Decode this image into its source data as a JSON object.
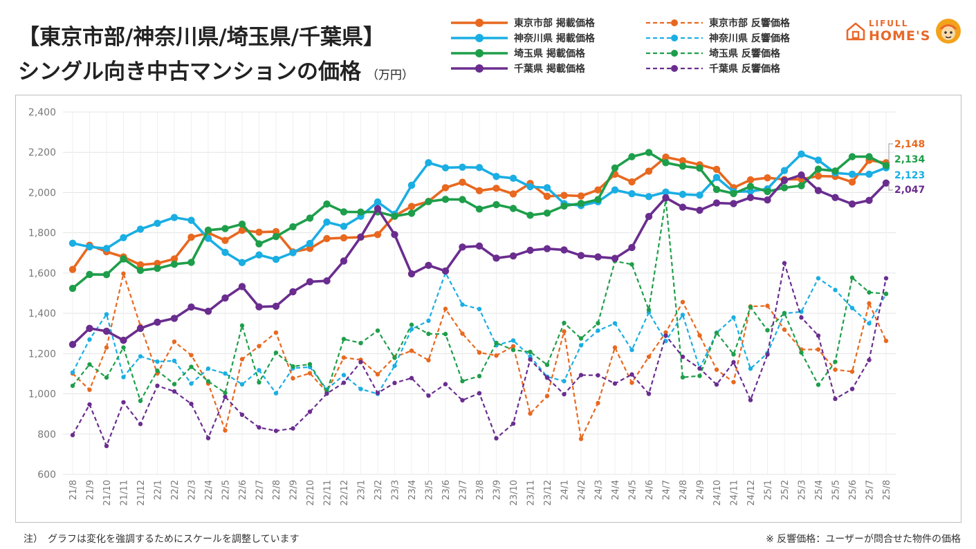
{
  "title": {
    "line1": "【東京市部/神奈川県/埼玉県/千葉県】",
    "line2": "シングル向き中古マンションの価格",
    "unit": "（万円）"
  },
  "logo": {
    "line1": "LIFULL",
    "line2": "HOME'S"
  },
  "notes": {
    "left": "注）　グラフは変化を強調するためにスケールを調整しています",
    "right": "※ 反響価格：ユーザーが問合せた物件の価格"
  },
  "colors": {
    "tokyo": "#e8681f",
    "kanagawa": "#1aaee3",
    "saitama": "#1e9e4a",
    "chiba": "#6a2d8f"
  },
  "chart_data": {
    "type": "line",
    "title": "【東京市部/神奈川県/埼玉県/千葉県】シングル向き中古マンションの価格",
    "ylabel": "",
    "xlabel": "",
    "unit": "万円",
    "ylim": [
      600,
      2400
    ],
    "yticks": [
      600,
      800,
      1000,
      1200,
      1400,
      1600,
      1800,
      2000,
      2200,
      2400
    ],
    "ytick_labels": [
      "600",
      "800",
      "1,000",
      "1,200",
      "1,400",
      "1,600",
      "1,800",
      "2,000",
      "2,200",
      "2,400"
    ],
    "grid": true,
    "legend_position": "top-right",
    "categories": [
      "21/8",
      "21/9",
      "21/10",
      "21/11",
      "21/12",
      "22/1",
      "22/2",
      "22/3",
      "22/4",
      "22/5",
      "22/6",
      "22/7",
      "22/8",
      "22/9",
      "22/10",
      "22/11",
      "22/12",
      "23/1",
      "23/2",
      "23/3",
      "23/4",
      "23/5",
      "23/6",
      "23/7",
      "23/8",
      "23/9",
      "23/10",
      "23/11",
      "23/12",
      "24/1",
      "24/2",
      "24/3",
      "24/4",
      "24/5",
      "24/6",
      "24/7",
      "24/8",
      "24/9",
      "24/10",
      "24/11",
      "24/12",
      "25/1",
      "25/2",
      "25/3",
      "25/4",
      "25/5",
      "25/6",
      "25/7",
      "25/8"
    ],
    "series": [
      {
        "name": "東京市部 掲載価格",
        "color_key": "tokyo",
        "style": "solid",
        "values": [
          1618,
          1738,
          1706,
          1680,
          1641,
          1648,
          1670,
          1778,
          1800,
          1762,
          1812,
          1803,
          1806,
          1705,
          1722,
          1771,
          1775,
          1778,
          1791,
          1884,
          1931,
          1956,
          2024,
          2051,
          2009,
          2021,
          1993,
          2045,
          1981,
          1986,
          1983,
          2013,
          2091,
          2053,
          2106,
          2176,
          2158,
          2138,
          2115,
          2024,
          2063,
          2073,
          2065,
          2066,
          2082,
          2080,
          2052,
          2160,
          2148
        ]
      },
      {
        "name": "神奈川県 掲載価格",
        "color_key": "kanagawa",
        "style": "solid",
        "values": [
          1748,
          1730,
          1722,
          1776,
          1818,
          1847,
          1876,
          1862,
          1772,
          1703,
          1652,
          1690,
          1668,
          1701,
          1747,
          1853,
          1832,
          1882,
          1953,
          1892,
          2036,
          2148,
          2123,
          2126,
          2124,
          2080,
          2071,
          2029,
          2024,
          1945,
          1935,
          1954,
          2013,
          1994,
          1980,
          2002,
          1991,
          1987,
          2075,
          2004,
          2006,
          2018,
          2109,
          2191,
          2161,
          2097,
          2091,
          2091,
          2123
        ]
      },
      {
        "name": "埼玉県 掲載価格",
        "color_key": "saitama",
        "style": "solid",
        "values": [
          1524,
          1593,
          1592,
          1670,
          1613,
          1623,
          1644,
          1653,
          1813,
          1821,
          1843,
          1745,
          1781,
          1830,
          1873,
          1943,
          1904,
          1903,
          1904,
          1882,
          1897,
          1955,
          1966,
          1965,
          1918,
          1940,
          1921,
          1887,
          1898,
          1933,
          1946,
          1965,
          2122,
          2178,
          2199,
          2148,
          2131,
          2121,
          2015,
          1995,
          2030,
          2005,
          2024,
          2034,
          2116,
          2107,
          2178,
          2178,
          2134
        ]
      },
      {
        "name": "千葉県 掲載価格",
        "color_key": "chiba",
        "style": "solid",
        "values": [
          1245,
          1325,
          1311,
          1266,
          1325,
          1356,
          1375,
          1431,
          1410,
          1476,
          1533,
          1432,
          1435,
          1507,
          1557,
          1561,
          1660,
          1779,
          1920,
          1791,
          1596,
          1638,
          1610,
          1729,
          1734,
          1674,
          1685,
          1713,
          1721,
          1715,
          1687,
          1680,
          1673,
          1727,
          1881,
          1974,
          1927,
          1912,
          1948,
          1945,
          1975,
          1963,
          2060,
          2087,
          2010,
          1975,
          1943,
          1961,
          2047
        ]
      },
      {
        "name": "東京市部 反響価格",
        "color_key": "tokyo",
        "style": "dashed",
        "values": [
          1101,
          1020,
          1230,
          1597,
          1338,
          1101,
          1259,
          1192,
          1051,
          818,
          1172,
          1237,
          1304,
          1077,
          1102,
          1009,
          1180,
          1169,
          1097,
          1183,
          1214,
          1167,
          1422,
          1299,
          1205,
          1190,
          1236,
          902,
          989,
          1310,
          776,
          954,
          1230,
          1055,
          1184,
          1305,
          1456,
          1290,
          1120,
          1058,
          1434,
          1437,
          1319,
          1220,
          1220,
          1120,
          1110,
          1449,
          1263
        ]
      },
      {
        "name": "神奈川県 反響価格",
        "color_key": "kanagawa",
        "style": "dashed",
        "values": [
          1106,
          1270,
          1395,
          1083,
          1186,
          1160,
          1164,
          1051,
          1125,
          1101,
          1047,
          1117,
          1003,
          1127,
          1133,
          1022,
          1093,
          1024,
          1000,
          1139,
          1321,
          1363,
          1601,
          1443,
          1421,
          1241,
          1265,
          1186,
          1085,
          1063,
          1241,
          1314,
          1350,
          1218,
          1404,
          1262,
          1392,
          1126,
          1303,
          1379,
          1125,
          1202,
          1399,
          1408,
          1574,
          1516,
          1426,
          1350,
          1496
        ]
      },
      {
        "name": "埼玉県 反響価格",
        "color_key": "saitama",
        "style": "dashed",
        "values": [
          1040,
          1146,
          1081,
          1230,
          965,
          1115,
          1048,
          1134,
          1062,
          1005,
          1339,
          1057,
          1204,
          1136,
          1147,
          1011,
          1272,
          1252,
          1314,
          1179,
          1343,
          1298,
          1297,
          1063,
          1088,
          1253,
          1218,
          1208,
          1144,
          1352,
          1275,
          1351,
          1659,
          1643,
          1417,
          1964,
          1082,
          1089,
          1303,
          1196,
          1431,
          1316,
          1401,
          1205,
          1045,
          1159,
          1577,
          1504,
          1497
        ]
      },
      {
        "name": "千葉県 反響価格",
        "color_key": "chiba",
        "style": "dashed",
        "values": [
          795,
          947,
          741,
          958,
          850,
          1040,
          1012,
          950,
          780,
          985,
          896,
          833,
          816,
          828,
          911,
          1001,
          1055,
          1158,
          1004,
          1054,
          1078,
          991,
          1048,
          968,
          1003,
          779,
          852,
          1171,
          1080,
          998,
          1093,
          1092,
          1051,
          1096,
          1000,
          1289,
          1184,
          1126,
          1046,
          1157,
          969,
          1195,
          1649,
          1379,
          1289,
          975,
          1024,
          1168,
          1574
        ]
      }
    ],
    "end_labels": [
      {
        "text": "2,148",
        "color_key": "tokyo",
        "value": 2148
      },
      {
        "text": "2,134",
        "color_key": "saitama",
        "value": 2134
      },
      {
        "text": "2,123",
        "color_key": "kanagawa",
        "value": 2123
      },
      {
        "text": "2,047",
        "color_key": "chiba",
        "value": 2047
      }
    ]
  }
}
